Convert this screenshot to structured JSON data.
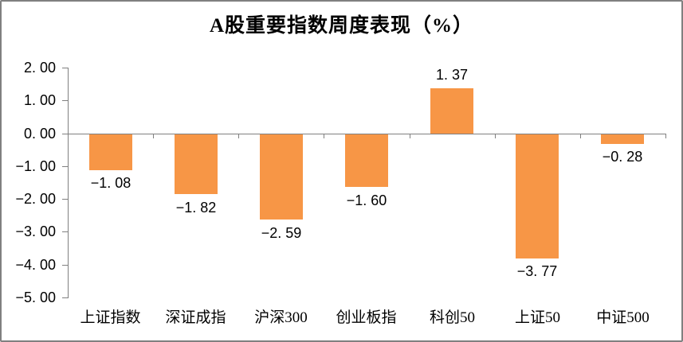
{
  "chart_data": {
    "type": "bar",
    "title": "A股重要指数周度表现（%）",
    "categories": [
      "上证指数",
      "深证成指",
      "沪深300",
      "创业板指",
      "科创50",
      "上证50",
      "中证500"
    ],
    "values": [
      -1.08,
      -1.82,
      -2.59,
      -1.6,
      1.37,
      -3.77,
      -0.28
    ],
    "data_labels": [
      "−1. 08",
      "−1. 82",
      "−2. 59",
      "−1. 60",
      "1. 37",
      "−3. 77",
      "−0. 28"
    ],
    "y_ticks": [
      "2. 00",
      "1. 00",
      "0. 00",
      "−1. 00",
      "−2. 00",
      "−3. 00",
      "−4. 00",
      "−5. 00"
    ],
    "ylim": [
      -5,
      2
    ],
    "y_tick_step": 1,
    "xlabel": "",
    "ylabel": "",
    "grid": false,
    "legend": false,
    "colors": {
      "bar": "#F79646",
      "axis": "#808080",
      "text": "#000000",
      "border": "#808080",
      "background": "#FFFFFF"
    }
  }
}
